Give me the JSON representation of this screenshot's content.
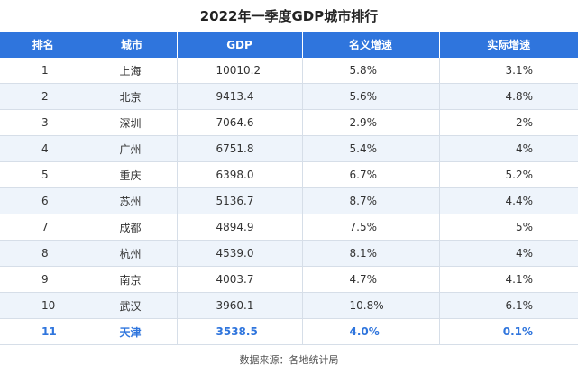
{
  "title": "2022年一季度GDP城市排行",
  "table": {
    "headers": [
      "排名",
      "城市",
      "GDP",
      "名义增速",
      "实际增速"
    ],
    "rows": [
      [
        "1",
        "上海",
        "10010.2",
        "5.8%",
        "3.1%"
      ],
      [
        "2",
        "北京",
        "9413.4",
        "5.6%",
        "4.8%"
      ],
      [
        "3",
        "深圳",
        "7064.6",
        "2.9%",
        "2%"
      ],
      [
        "4",
        "广州",
        "6751.8",
        "5.4%",
        "4%"
      ],
      [
        "5",
        "重庆",
        "6398.0",
        "6.7%",
        "5.2%"
      ],
      [
        "6",
        "苏州",
        "5136.7",
        "8.7%",
        "4.4%"
      ],
      [
        "7",
        "成都",
        "4894.9",
        "7.5%",
        "5%"
      ],
      [
        "8",
        "杭州",
        "4539.0",
        "8.1%",
        "4%"
      ],
      [
        "9",
        "南京",
        "4003.7",
        "4.7%",
        "4.1%"
      ],
      [
        "10",
        "武汉",
        "3960.1",
        "10.8%",
        "6.1%"
      ],
      [
        "11",
        "天津",
        "3538.5",
        "4.0%",
        "0.1%"
      ]
    ],
    "highlight_row_index": 10
  },
  "source": "数据来源：各地统计局",
  "colors": {
    "header_bg": "#2f75dd",
    "highlight_text": "#2f75dd",
    "alt_row_bg": "#eef4fb"
  }
}
